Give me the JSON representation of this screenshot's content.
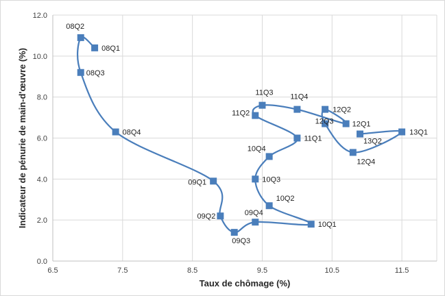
{
  "chart_data": {
    "type": "scatter",
    "title": "",
    "xlabel": "Taux de chômage (%)",
    "ylabel": "Indicateur de pénurie de main-d'œuvre (%)",
    "xlim": [
      6.5,
      12.0
    ],
    "ylim": [
      0.0,
      12.0
    ],
    "x_ticks": [
      "6.5",
      "7.5",
      "8.5",
      "9.5",
      "10.5",
      "11.5"
    ],
    "y_ticks": [
      "0.0",
      "2.0",
      "4.0",
      "6.0",
      "8.0",
      "10.0",
      "12.0"
    ],
    "grid": "vertical and horizontal major gridlines",
    "line_color": "#4A7EBB",
    "marker_color": "#4A7EBB",
    "series": [
      {
        "points": [
          {
            "label": "08Q1",
            "x": 7.1,
            "y": 10.4
          },
          {
            "label": "08Q2",
            "x": 6.9,
            "y": 10.9
          },
          {
            "label": "08Q3",
            "x": 6.9,
            "y": 9.2
          },
          {
            "label": "08Q4",
            "x": 7.4,
            "y": 6.3
          },
          {
            "label": "09Q1",
            "x": 8.8,
            "y": 3.9
          },
          {
            "label": "09Q2",
            "x": 8.9,
            "y": 2.2
          },
          {
            "label": "09Q3",
            "x": 9.1,
            "y": 1.4
          },
          {
            "label": "09Q4",
            "x": 9.4,
            "y": 1.9
          },
          {
            "label": "10Q1",
            "x": 10.2,
            "y": 1.8
          },
          {
            "label": "10Q2",
            "x": 9.6,
            "y": 2.7
          },
          {
            "label": "10Q3",
            "x": 9.4,
            "y": 4.0
          },
          {
            "label": "10Q4",
            "x": 9.6,
            "y": 5.1
          },
          {
            "label": "11Q1",
            "x": 10.0,
            "y": 6.0
          },
          {
            "label": "11Q2",
            "x": 9.4,
            "y": 7.1
          },
          {
            "label": "11Q3",
            "x": 9.5,
            "y": 7.6
          },
          {
            "label": "11Q4",
            "x": 10.0,
            "y": 7.4
          },
          {
            "label": "12Q1",
            "x": 10.7,
            "y": 6.7
          },
          {
            "label": "12Q2",
            "x": 10.4,
            "y": 7.4
          },
          {
            "label": "12Q3",
            "x": 10.4,
            "y": 6.7
          },
          {
            "label": "12Q4",
            "x": 10.8,
            "y": 5.3
          },
          {
            "label": "13Q1",
            "x": 11.5,
            "y": 6.3
          },
          {
            "label": "13Q2",
            "x": 10.9,
            "y": 6.2
          }
        ]
      }
    ]
  }
}
